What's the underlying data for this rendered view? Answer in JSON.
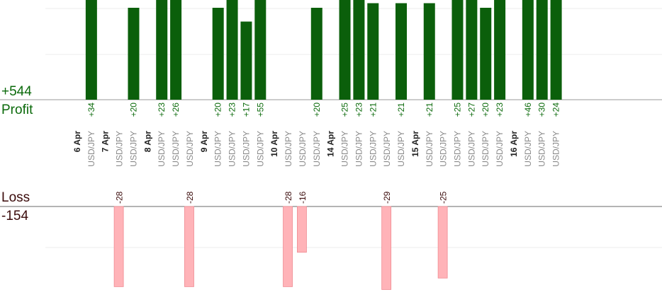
{
  "summary": {
    "profit_total": "+544",
    "profit_label": "Profit",
    "loss_label": "Loss",
    "loss_total": "-154"
  },
  "colors": {
    "profit_bar": "#0b5f0b",
    "profit_text": "#0b6a0b",
    "loss_bar": "#ffb3b8",
    "loss_text": "#3a0a0a",
    "date_text": "#222222",
    "pair_text": "#8a8a8a"
  },
  "chart_data": {
    "type": "bar",
    "columns": [
      {
        "date": "6 Apr"
      },
      {
        "pair": "USD/JPY",
        "profit": 34
      },
      {
        "date": "7 Apr"
      },
      {
        "pair": "USD/JPY",
        "loss": -28
      },
      {
        "pair": "USD/JPY",
        "profit": 20
      },
      {
        "date": "8 Apr"
      },
      {
        "pair": "USD/JPY",
        "profit": 23
      },
      {
        "pair": "USD/JPY",
        "profit": 26
      },
      {
        "pair": "USD/JPY",
        "loss": -28
      },
      {
        "date": "9 Apr"
      },
      {
        "pair": "USD/JPY",
        "profit": 20
      },
      {
        "pair": "USD/JPY",
        "profit": 23
      },
      {
        "pair": "USD/JPY",
        "profit": 17
      },
      {
        "pair": "USD/JPY",
        "profit": 55
      },
      {
        "date": "10 Apr"
      },
      {
        "pair": "USD/JPY",
        "loss": -28
      },
      {
        "pair": "USD/JPY",
        "loss": -16
      },
      {
        "pair": "USD/JPY",
        "profit": 20
      },
      {
        "date": "14 Apr"
      },
      {
        "pair": "USD/JPY",
        "profit": 25
      },
      {
        "pair": "USD/JPY",
        "profit": 23
      },
      {
        "pair": "USD/JPY",
        "profit": 21
      },
      {
        "pair": "USD/JPY",
        "loss": -29
      },
      {
        "pair": "USD/JPY",
        "profit": 21
      },
      {
        "date": "15 Apr"
      },
      {
        "pair": "USD/JPY",
        "profit": 21
      },
      {
        "pair": "USD/JPY",
        "loss": -25
      },
      {
        "pair": "USD/JPY",
        "profit": 25
      },
      {
        "pair": "USD/JPY",
        "profit": 27
      },
      {
        "pair": "USD/JPY",
        "profit": 20
      },
      {
        "pair": "USD/JPY",
        "profit": 23
      },
      {
        "date": "16 Apr"
      },
      {
        "pair": "USD/JPY",
        "profit": 46
      },
      {
        "pair": "USD/JPY",
        "profit": 30
      },
      {
        "pair": "USD/JPY",
        "profit": 24
      }
    ]
  }
}
